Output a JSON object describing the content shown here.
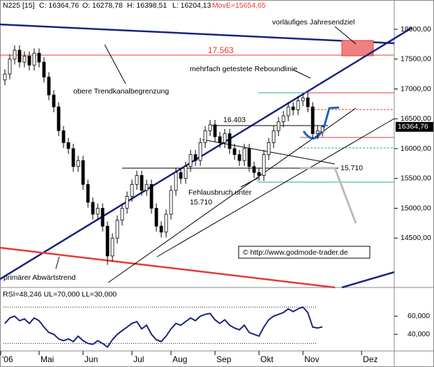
{
  "chart_data": {
    "type": "candlestick",
    "header": [
      "N225 [15]",
      "C: 16364,76",
      "O: 16278,78",
      "H: 16398,51",
      "L: 16204,13"
    ],
    "header_move": "MovE=15654,65",
    "x": [
      0,
      1,
      2,
      3,
      4,
      5,
      6,
      7,
      8,
      9,
      10,
      11,
      12,
      13,
      14,
      15,
      16,
      17,
      18,
      19,
      20,
      21,
      22,
      23,
      24,
      25,
      26,
      27,
      28,
      29,
      30,
      31,
      32,
      33,
      34,
      35,
      36,
      37,
      38,
      39,
      40,
      41,
      42,
      43,
      44,
      45,
      46,
      47,
      48,
      49,
      50,
      51,
      52,
      53,
      54,
      55,
      56,
      57,
      58,
      59,
      60,
      61,
      62,
      63,
      64,
      65
    ],
    "open": [
      17150,
      17250,
      17500,
      17650,
      17450,
      17550,
      17400,
      17600,
      17450,
      17200,
      16900,
      16700,
      16300,
      16100,
      16000,
      15700,
      15800,
      15400,
      15100,
      14900,
      15000,
      14700,
      14200,
      14500,
      14800,
      15000,
      15200,
      15400,
      15550,
      15300,
      15400,
      15000,
      14700,
      14600,
      14900,
      15300,
      15600,
      15500,
      15700,
      15900,
      15800,
      16100,
      16300,
      16400,
      16200,
      16100,
      16250,
      16000,
      15900,
      15800,
      16000,
      15700,
      15600,
      15550,
      15900,
      16100,
      16300,
      16450,
      16550,
      16700,
      16650,
      16800,
      16850,
      16700,
      16250,
      16278.78
    ],
    "high": [
      17330,
      17580,
      17730,
      17730,
      17630,
      17630,
      17680,
      17680,
      17530,
      17280,
      16980,
      16780,
      16380,
      16180,
      16080,
      15880,
      15880,
      15480,
      15180,
      15080,
      15080,
      14780,
      14580,
      14880,
      15080,
      15280,
      15480,
      15630,
      15630,
      15480,
      15480,
      15080,
      14780,
      14980,
      15380,
      15680,
      15680,
      15780,
      15980,
      15980,
      16180,
      16380,
      16480,
      16480,
      16280,
      16330,
      16330,
      16080,
      15980,
      16080,
      16080,
      15780,
      15680,
      15980,
      16180,
      16380,
      16530,
      16630,
      16780,
      16780,
      16880,
      16930,
      16930,
      16780,
      16380,
      16398.51
    ],
    "low": [
      17060,
      17160,
      17410,
      17360,
      17360,
      17310,
      17310,
      17360,
      17110,
      16810,
      16610,
      16210,
      16010,
      15910,
      15610,
      15610,
      15310,
      15010,
      14810,
      14810,
      14610,
      14050,
      14110,
      14410,
      14710,
      14910,
      15110,
      15310,
      15210,
      15210,
      14910,
      14610,
      14510,
      14510,
      14810,
      15210,
      15410,
      15410,
      15610,
      15710,
      15710,
      16010,
      16210,
      16110,
      16010,
      16010,
      15910,
      15810,
      15710,
      15710,
      15610,
      15510,
      15460,
      15460,
      15810,
      16010,
      16210,
      16360,
      16460,
      16560,
      16560,
      16710,
      16610,
      16160,
      16160,
      16204.13
    ],
    "close": [
      17250,
      17500,
      17650,
      17450,
      17550,
      17400,
      17600,
      17450,
      17200,
      16900,
      16700,
      16300,
      16100,
      16000,
      15700,
      15800,
      15400,
      15100,
      14900,
      15000,
      14700,
      14200,
      14500,
      14800,
      15000,
      15200,
      15400,
      15550,
      15300,
      15400,
      15000,
      14700,
      14600,
      14900,
      15300,
      15600,
      15500,
      15700,
      15900,
      15800,
      16100,
      16300,
      16400,
      16200,
      16100,
      16250,
      16000,
      15900,
      15800,
      16000,
      15700,
      15600,
      15550,
      15900,
      16100,
      16300,
      16450,
      16550,
      16700,
      16650,
      16800,
      16850,
      16700,
      16250,
      16300,
      16364.76
    ],
    "xlim": [
      -1,
      79.4
    ],
    "xticks": [
      {
        "value": -1,
        "label": "'06"
      },
      {
        "value": 7,
        "label": "Mai"
      },
      {
        "value": 16,
        "label": "Jun"
      },
      {
        "value": 26,
        "label": "Jul"
      },
      {
        "value": 34,
        "label": "Aug"
      },
      {
        "value": 43,
        "label": "Sep"
      },
      {
        "value": 52,
        "label": "Okt"
      },
      {
        "value": 61,
        "label": "Nov"
      },
      {
        "value": 73,
        "label": "Dez"
      }
    ],
    "ylim": [
      13696,
      18491
    ],
    "yticks": [
      {
        "value": 14500,
        "label": "14500,00"
      },
      {
        "value": 15000,
        "label": "15000,00"
      },
      {
        "value": 15500,
        "label": "15500,00"
      },
      {
        "value": 16000,
        "label": "16000,00"
      },
      {
        "value": 16500,
        "label": "16500,00"
      },
      {
        "value": 17000,
        "label": "17000,00"
      },
      {
        "value": 17500,
        "label": "17500,00"
      },
      {
        "value": 18000,
        "label": "18000,00"
      }
    ],
    "last_label": {
      "value": 16364.76,
      "label": "16364,76"
    },
    "annotations": {
      "target": "vorläufiges Jahresendziel",
      "target_level": "17.563",
      "rebound": "mehrfach getestete Reboundlinie",
      "upper_channel": "obere Trendkanalbegrenzung",
      "level_16403": "16.403",
      "level_15710": "15.710",
      "false_break": [
        "Fehlausbruch unter",
        "15.710"
      ],
      "primary_trend": "primärer Abwärtstrend",
      "copyright": "© http://www.godmode-trader.de"
    },
    "rsi": {
      "title": "RSI=48,246 UL=70,000 LL=30,000",
      "color": "#1a237e",
      "values": [
        52,
        58,
        60,
        55,
        57,
        52,
        58,
        55,
        48,
        42,
        40,
        35,
        33,
        35,
        32,
        38,
        33,
        30,
        29,
        33,
        30,
        26,
        34,
        40,
        44,
        48,
        52,
        54,
        46,
        50,
        40,
        34,
        32,
        38,
        46,
        52,
        50,
        54,
        58,
        55,
        60,
        62,
        63,
        56,
        52,
        56,
        50,
        47,
        45,
        50,
        42,
        40,
        38,
        48,
        56,
        60,
        62,
        64,
        68,
        65,
        68,
        70,
        64,
        48,
        47,
        48.246
      ],
      "ylim": [
        24,
        87
      ],
      "yticks": [
        {
          "value": 40,
          "label": "40,000"
        },
        {
          "value": 60,
          "label": "60,000"
        }
      ],
      "bands": [
        70,
        30
      ]
    }
  }
}
